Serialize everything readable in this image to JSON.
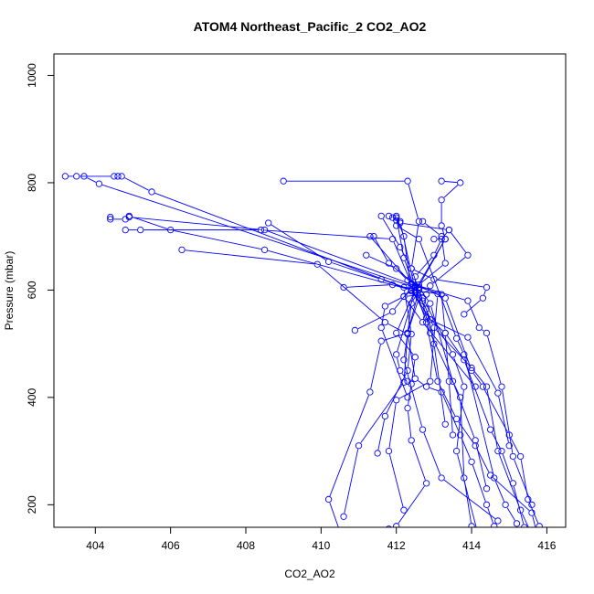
{
  "chart_data": {
    "type": "line",
    "title": "ATOM4 Northeast_Pacific_2 CO2_AO2",
    "xlabel": "CO2_AO2",
    "ylabel": "Pressure (mbar)",
    "xlim": [
      402.9,
      416.5
    ],
    "ylim": [
      1040,
      158
    ],
    "y_reversed": true,
    "x_ticks": [
      404,
      406,
      408,
      410,
      412,
      414,
      416
    ],
    "y_ticks": [
      200,
      400,
      600,
      800,
      1000
    ],
    "grid": false,
    "legend": "none",
    "series_color": "#0000ff",
    "marker": "open-circle",
    "series": [
      {
        "x": [
          413.2,
          413.7,
          413.2,
          413.2,
          413.3,
          412.5,
          412.0,
          412.5,
          412.4,
          412.3,
          412.4,
          412.8,
          412.0,
          411.8
        ],
        "y": [
          803,
          800,
          768,
          720,
          695,
          600,
          520,
          475,
          425,
          380,
          320,
          240,
          160,
          155
        ]
      },
      {
        "x": [
          409.0,
          412.3,
          412.6,
          412.4,
          412.6,
          412.3,
          412.2,
          411.0,
          410.6
        ],
        "y": [
          803,
          803,
          728,
          640,
          600,
          520,
          428,
          310,
          178
        ]
      },
      {
        "x": [
          403.2,
          403.5,
          404.5,
          404.6,
          404.7,
          405.5,
          412.4,
          413.1,
          412.9,
          412.0,
          411.8,
          412.2
        ],
        "y": [
          812,
          812,
          812,
          812,
          812,
          783,
          600,
          593,
          430,
          395,
          300,
          190
        ]
      },
      {
        "x": [
          403.7,
          404.1,
          412.5,
          412.7,
          413.5,
          413.8,
          413.6,
          414.3
        ],
        "y": [
          812,
          798,
          605,
          585,
          480,
          420,
          300,
          110
        ]
      },
      {
        "x": [
          404.4,
          404.4,
          404.8,
          404.9,
          408.5,
          412.5,
          413.2,
          413.3,
          413.4,
          413.5
        ],
        "y": [
          736,
          732,
          732,
          736,
          712,
          608,
          592,
          520,
          430,
          330
        ]
      },
      {
        "x": [
          404.8,
          405.2,
          408.4,
          411.9,
          412.4,
          412.6,
          412.9,
          413.7,
          413.8,
          414.0
        ],
        "y": [
          712,
          712,
          712,
          695,
          612,
          605,
          520,
          400,
          250,
          160
        ]
      },
      {
        "x": [
          404.9,
          406.0,
          408.5,
          412.4,
          412.9,
          413.3,
          413.8,
          414.5,
          414.8,
          415.1,
          415.4
        ],
        "y": [
          738,
          712,
          675,
          600,
          545,
          520,
          470,
          340,
          300,
          240,
          158
        ]
      },
      {
        "x": [
          406.3,
          409.9,
          411.7,
          412.3,
          412.2,
          412.7,
          413.2,
          414.7
        ],
        "y": [
          675,
          648,
          540,
          518,
          470,
          340,
          250,
          170
        ]
      },
      {
        "x": [
          408.6,
          410.2,
          411.6,
          412.2,
          412.4,
          412.3,
          411.7,
          411.5
        ],
        "y": [
          725,
          653,
          620,
          605,
          518,
          450,
          365,
          296
        ]
      },
      {
        "x": [
          411.8,
          412.0,
          412.2,
          412.5,
          412.8,
          413.0,
          413.3
        ],
        "y": [
          738,
          735,
          660,
          600,
          565,
          500,
          350
        ]
      },
      {
        "x": [
          411.9,
          412.1,
          412.5,
          412.8,
          413.1,
          413.6,
          414.1,
          414.5,
          415.6,
          415.9
        ],
        "y": [
          735,
          728,
          600,
          540,
          430,
          360,
          310,
          255,
          185,
          100
        ]
      },
      {
        "x": [
          412.0,
          412.2,
          412.4,
          412.7,
          413.0,
          414.0,
          414.4,
          414.7,
          415.3,
          415.7
        ],
        "y": [
          738,
          700,
          598,
          580,
          530,
          455,
          420,
          300,
          190,
          130
        ]
      },
      {
        "x": [
          412.0,
          412.0,
          412.6,
          413.6,
          413.8,
          414.6,
          414.9,
          415.2,
          415.3
        ],
        "y": [
          730,
          720,
          695,
          510,
          480,
          250,
          200,
          165,
          120
        ]
      },
      {
        "x": [
          413.0,
          413.3,
          412.5,
          412.6,
          412.3,
          411.6,
          411.3,
          410.2,
          410.6
        ],
        "y": [
          695,
          695,
          595,
          585,
          520,
          505,
          410,
          210,
          130
        ]
      },
      {
        "x": [
          413.4,
          413.2,
          413.0,
          412.5,
          412.5,
          412.0,
          412.1,
          412.3
        ],
        "y": [
          712,
          695,
          665,
          625,
          600,
          480,
          450,
          430
        ]
      },
      {
        "x": [
          410.6,
          411.9,
          412.6,
          412.4,
          412.3,
          412.5,
          412.8,
          413.2,
          413.7,
          414.0,
          414.4,
          414.6
        ],
        "y": [
          605,
          610,
          600,
          575,
          520,
          435,
          420,
          410,
          330,
          280,
          200,
          160
        ]
      },
      {
        "x": [
          411.2,
          412.0,
          412.3,
          413.3,
          414.0,
          414.3,
          415.0,
          415.3,
          415.5,
          415.8
        ],
        "y": [
          665,
          640,
          618,
          585,
          450,
          420,
          330,
          290,
          210,
          160
        ]
      },
      {
        "x": [
          411.4,
          411.8,
          412.6,
          412.9,
          413.5,
          414.1,
          414.4
        ],
        "y": [
          700,
          650,
          605,
          575,
          430,
          320,
          230
        ]
      },
      {
        "x": [
          411.6,
          412.1,
          412.4,
          413.0,
          414.4,
          414.3,
          413.8
        ],
        "y": [
          738,
          680,
          640,
          620,
          605,
          585,
          555
        ]
      },
      {
        "x": [
          411.3,
          412.4,
          413.9,
          414.2,
          414.4,
          414.8,
          415.1,
          415.6
        ],
        "y": [
          700,
          612,
          580,
          530,
          520,
          420,
          290,
          200
        ]
      },
      {
        "x": [
          412.1,
          413.4,
          413.9,
          412.9,
          412.8,
          412.2,
          412.7,
          414.1
        ],
        "y": [
          725,
          712,
          665,
          608,
          592,
          588,
          540,
          420
        ]
      },
      {
        "x": [
          412.7,
          413.2,
          413.3,
          412.6,
          412.2,
          411.7,
          411.6,
          412.3
        ],
        "y": [
          728,
          700,
          650,
          610,
          588,
          570,
          530,
          400
        ]
      },
      {
        "x": [
          410.9,
          411.9,
          412.4,
          412.8,
          413.9,
          414.7,
          415.0
        ],
        "y": [
          525,
          560,
          605,
          548,
          512,
          408,
          310
        ]
      }
    ]
  }
}
